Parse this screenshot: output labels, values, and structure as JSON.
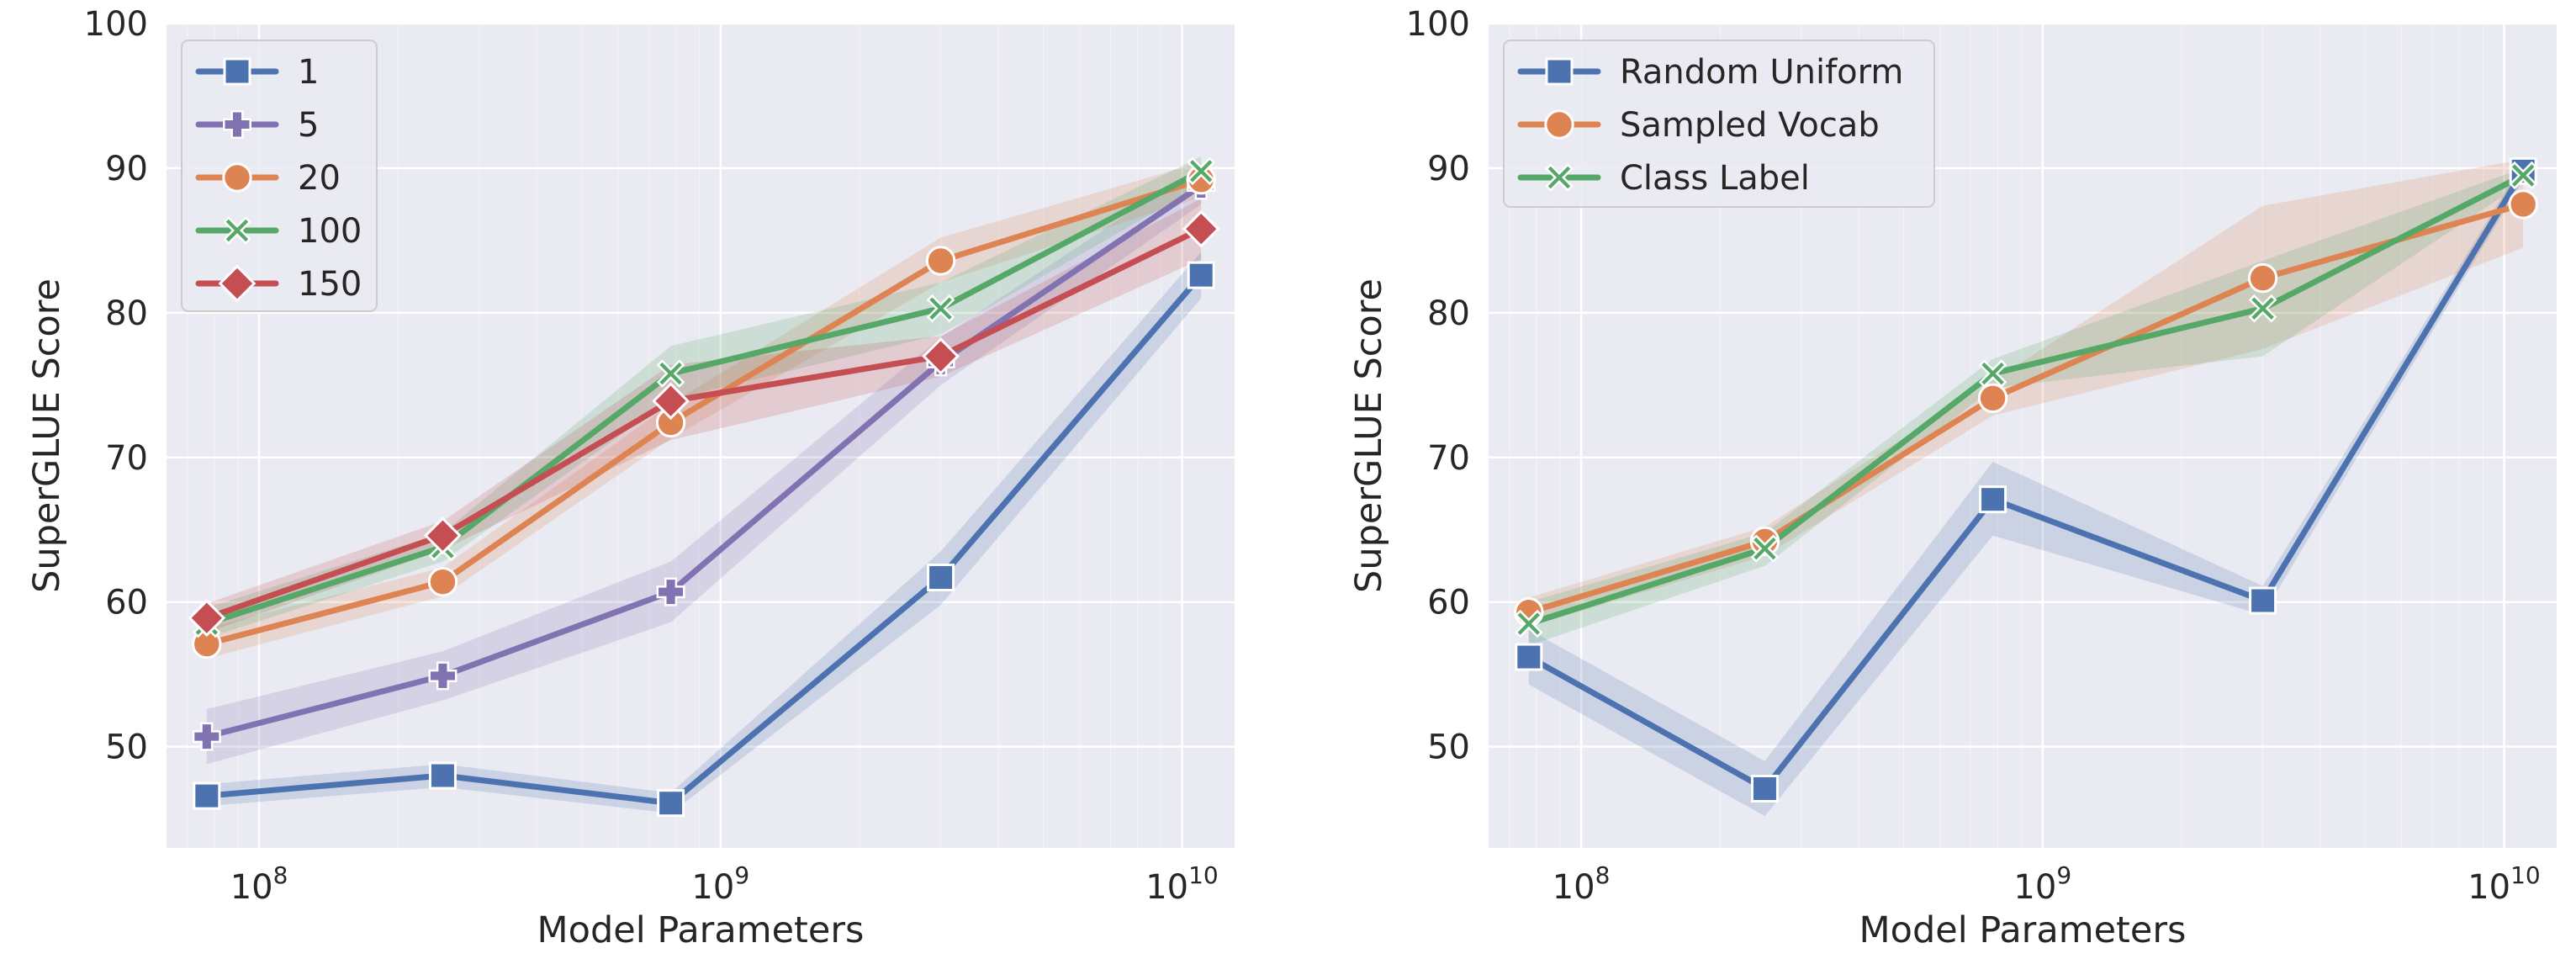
{
  "chart_data": [
    {
      "type": "line",
      "xscale": "log",
      "xlabel": "Model Parameters",
      "ylabel": "SuperGLUE Score",
      "ylim": [
        43,
        100
      ],
      "yticks": [
        50,
        60,
        70,
        80,
        90,
        100
      ],
      "xticks": [
        {
          "value": 100000000,
          "base": "10",
          "exp": "8"
        },
        {
          "value": 1000000000,
          "base": "10",
          "exp": "9"
        },
        {
          "value": 10000000000,
          "base": "10",
          "exp": "10"
        }
      ],
      "grid": true,
      "legend_position": "top-left",
      "x": [
        77000000,
        250000000,
        780000000,
        3000000000,
        11000000000
      ],
      "series": [
        {
          "name": "1",
          "color": "#4c72b0",
          "marker": "square",
          "values": [
            46.6,
            48.0,
            46.1,
            61.7,
            82.6
          ],
          "lower": [
            45.9,
            47.2,
            45.4,
            59.8,
            81.0
          ],
          "upper": [
            47.4,
            48.8,
            46.8,
            63.5,
            84.2
          ]
        },
        {
          "name": "5",
          "color": "#8172b2",
          "marker": "plus",
          "values": [
            50.7,
            54.9,
            60.7,
            76.6,
            88.8
          ],
          "lower": [
            48.8,
            53.2,
            58.6,
            75.0,
            87.5
          ],
          "upper": [
            52.6,
            56.6,
            62.8,
            78.3,
            90.2
          ]
        },
        {
          "name": "20",
          "color": "#dd8452",
          "marker": "circle",
          "values": [
            57.1,
            61.4,
            72.4,
            83.6,
            89.2
          ],
          "lower": [
            56.1,
            60.4,
            71.3,
            82.1,
            88.0
          ],
          "upper": [
            58.2,
            62.4,
            73.7,
            85.2,
            90.4
          ]
        },
        {
          "name": "100",
          "color": "#55a868",
          "marker": "x",
          "values": [
            58.5,
            63.8,
            75.8,
            80.3,
            89.8
          ],
          "lower": [
            57.5,
            62.8,
            74.0,
            78.5,
            88.8
          ],
          "upper": [
            59.6,
            64.8,
            77.7,
            82.1,
            90.8
          ]
        },
        {
          "name": "150",
          "color": "#c44e52",
          "marker": "diamond",
          "values": [
            58.9,
            64.6,
            73.9,
            77.0,
            85.8
          ],
          "lower": [
            57.9,
            63.6,
            71.2,
            75.6,
            83.7
          ],
          "upper": [
            59.9,
            65.6,
            76.4,
            78.4,
            87.9
          ]
        }
      ]
    },
    {
      "type": "line",
      "xscale": "log",
      "xlabel": "Model Parameters",
      "ylabel": "SuperGLUE Score",
      "ylim": [
        43,
        100
      ],
      "yticks": [
        50,
        60,
        70,
        80,
        90,
        100
      ],
      "xticks": [
        {
          "value": 100000000,
          "base": "10",
          "exp": "8"
        },
        {
          "value": 1000000000,
          "base": "10",
          "exp": "9"
        },
        {
          "value": 10000000000,
          "base": "10",
          "exp": "10"
        }
      ],
      "grid": true,
      "legend_position": "top-left",
      "x": [
        77000000,
        250000000,
        780000000,
        3000000000,
        11000000000
      ],
      "series": [
        {
          "name": "Random Uniform",
          "color": "#4c72b0",
          "marker": "square",
          "values": [
            56.2,
            47.1,
            67.1,
            60.1,
            89.8
          ],
          "lower": [
            54.3,
            45.2,
            64.6,
            59.1,
            89.2
          ],
          "upper": [
            58.1,
            49.0,
            69.7,
            61.1,
            90.4
          ]
        },
        {
          "name": "Sampled Vocab",
          "color": "#dd8452",
          "marker": "circle",
          "values": [
            59.3,
            64.2,
            74.1,
            82.4,
            87.5
          ],
          "lower": [
            58.3,
            63.2,
            72.9,
            77.5,
            84.5
          ],
          "upper": [
            60.3,
            65.2,
            75.3,
            87.4,
            90.6
          ]
        },
        {
          "name": "Class Label",
          "color": "#55a868",
          "marker": "x",
          "values": [
            58.5,
            63.7,
            75.8,
            80.3,
            89.5
          ],
          "lower": [
            57.0,
            62.5,
            74.8,
            77.0,
            89.0
          ],
          "upper": [
            60.0,
            64.8,
            76.8,
            83.6,
            90.0
          ]
        }
      ]
    }
  ]
}
